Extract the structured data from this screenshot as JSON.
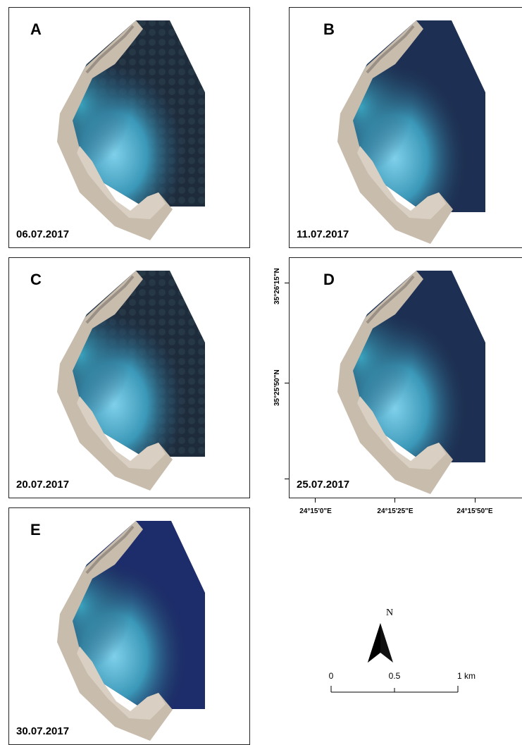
{
  "panels": [
    {
      "letter": "A",
      "date": "06.07.2017"
    },
    {
      "letter": "B",
      "date": "11.07.2017"
    },
    {
      "letter": "C",
      "date": "20.07.2017"
    },
    {
      "letter": "D",
      "date": "25.07.2017"
    },
    {
      "letter": "E",
      "date": "30.07.2017"
    }
  ],
  "latitude_labels": [
    "35°26'15\"N",
    "35°25'50\"N"
  ],
  "longitude_labels": [
    "24°15'0\"E",
    "24°15'25\"E",
    "24°15'50\"E"
  ],
  "north_arrow": {
    "label": "N",
    "icon": "north-arrow-icon"
  },
  "scale_bar": {
    "labels": [
      "0",
      "0.5",
      "1 km"
    ]
  },
  "colors": {
    "deep_water": "#1b2a47",
    "shallow_water": "#5fb6d6",
    "land": "#c9bfb2",
    "frame": "#222222"
  }
}
